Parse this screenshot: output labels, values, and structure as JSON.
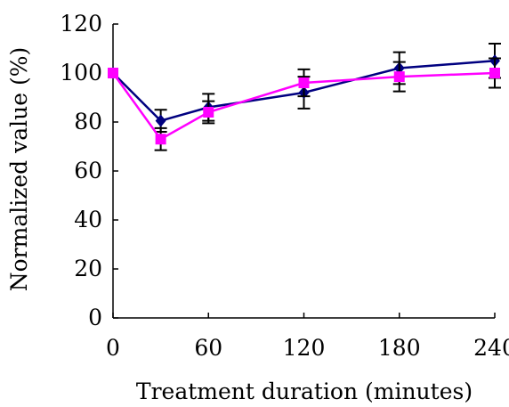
{
  "chart_data": {
    "type": "line",
    "title": "",
    "xlabel": "Treatment duration (minutes)",
    "ylabel": "Normalized value (%)",
    "xlim": [
      0,
      240
    ],
    "ylim": [
      0,
      120
    ],
    "xticks": [
      0,
      60,
      120,
      180,
      240
    ],
    "yticks": [
      0,
      20,
      40,
      60,
      80,
      100,
      120
    ],
    "grid": false,
    "legend": "none",
    "series": [
      {
        "color": "#000080",
        "marker": "diamond",
        "x": [
          0,
          30,
          60,
          120,
          180,
          240
        ],
        "y": [
          100,
          80.5,
          86,
          92,
          102,
          105
        ],
        "error": [
          0,
          4.5,
          5.5,
          6.5,
          6.5,
          7
        ]
      },
      {
        "color": "#FF00FF",
        "marker": "square",
        "x": [
          0,
          30,
          60,
          120,
          180,
          240
        ],
        "y": [
          100,
          73,
          84,
          96,
          98.5,
          100
        ],
        "error": [
          0,
          4.5,
          4.5,
          5.5,
          6,
          6
        ]
      }
    ]
  }
}
